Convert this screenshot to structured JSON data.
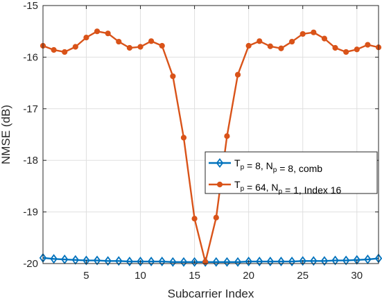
{
  "chart_data": {
    "type": "line",
    "xlabel": "Subcarrier Index",
    "ylabel": "NMSE (dB)",
    "xlim": [
      1,
      32
    ],
    "ylim": [
      -20,
      -15
    ],
    "xticks": [
      5,
      10,
      15,
      20,
      25,
      30
    ],
    "yticks": [
      -20,
      -19,
      -18,
      -17,
      -16,
      -15
    ],
    "grid": true,
    "legend_position": "center-right",
    "x": [
      1,
      2,
      3,
      4,
      5,
      6,
      7,
      8,
      9,
      10,
      11,
      12,
      13,
      14,
      15,
      16,
      17,
      18,
      19,
      20,
      21,
      22,
      23,
      24,
      25,
      26,
      27,
      28,
      29,
      30,
      31,
      32
    ],
    "series": [
      {
        "legend": {
          "main1": "T",
          "sub1": "p",
          "mid": " = 8, N",
          "sub2": "p",
          "tail": " = 8, comb"
        },
        "color": "#0072BD",
        "marker": "diamond",
        "values": [
          -19.89,
          -19.91,
          -19.92,
          -19.93,
          -19.94,
          -19.94,
          -19.95,
          -19.95,
          -19.96,
          -19.96,
          -19.96,
          -19.96,
          -19.97,
          -19.97,
          -19.97,
          -19.97,
          -19.97,
          -19.97,
          -19.97,
          -19.96,
          -19.96,
          -19.96,
          -19.96,
          -19.96,
          -19.95,
          -19.95,
          -19.95,
          -19.94,
          -19.94,
          -19.93,
          -19.92,
          -19.9
        ]
      },
      {
        "legend": {
          "main1": "T",
          "sub1": "p",
          "mid": " = 64, N",
          "sub2": "p",
          "tail": " = 1, Index 16"
        },
        "color": "#D95319",
        "marker": "circle",
        "values": [
          -15.78,
          -15.86,
          -15.9,
          -15.8,
          -15.62,
          -15.5,
          -15.54,
          -15.7,
          -15.82,
          -15.8,
          -15.69,
          -15.78,
          -16.37,
          -17.56,
          -19.13,
          -19.97,
          -19.11,
          -17.53,
          -16.34,
          -15.78,
          -15.69,
          -15.79,
          -15.83,
          -15.7,
          -15.55,
          -15.52,
          -15.64,
          -15.82,
          -15.9,
          -15.85,
          -15.76,
          -15.81
        ]
      }
    ]
  }
}
